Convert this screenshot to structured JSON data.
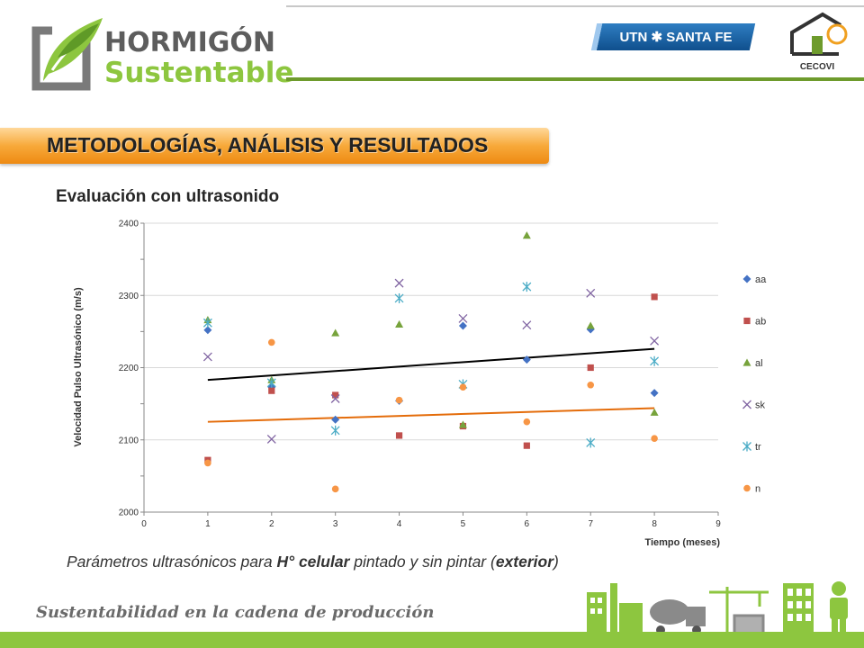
{
  "header": {
    "logo_line1": "HORMIGÓN",
    "logo_line2": "Sustentable",
    "utn_badge": "UTN ✱ SANTA FE",
    "cecovi": "CECOVI"
  },
  "section_title": "METODOLOGÍAS, ANÁLISIS Y RESULTADOS",
  "subtitle": "Evaluación con ultrasonido",
  "caption": {
    "part1": "Parámetros ultrasónicos para ",
    "part2": "H° celular",
    "part3": " pintado y sin pintar (",
    "part4": "exterior",
    "part5": ")"
  },
  "footer": {
    "slogan": "Sustentabilidad en la cadena de producción",
    "icons": [
      "factory-icon",
      "concrete-mixer-icon",
      "crane-icon",
      "building-icon",
      "person-icon"
    ]
  },
  "colors": {
    "accent_green": "#8dc63f",
    "dark_green": "#6e9b2c",
    "banner_orange": "#f7a93a"
  },
  "chart_data": {
    "type": "scatter",
    "xlabel": "Tiempo  (meses)",
    "ylabel": "Velocidad Pulso Ultrasónico  (m/s)",
    "xlim": [
      0,
      9
    ],
    "ylim": [
      2000,
      2400
    ],
    "xticks": [
      0,
      1,
      2,
      3,
      4,
      5,
      6,
      7,
      8,
      9
    ],
    "yticks": [
      2000,
      2100,
      2200,
      2300,
      2400
    ],
    "grid": "horizontal",
    "legend_position": "right",
    "series": [
      {
        "name": "aa",
        "marker": "diamond",
        "color": "#4472c4",
        "points": [
          [
            1,
            2252
          ],
          [
            2,
            2173
          ],
          [
            3,
            2128
          ],
          [
            4,
            2154
          ],
          [
            5,
            2258
          ],
          [
            6,
            2211
          ],
          [
            7,
            2253
          ],
          [
            8,
            2165
          ]
        ]
      },
      {
        "name": "ab",
        "marker": "square",
        "color": "#c0504d",
        "points": [
          [
            1,
            2072
          ],
          [
            2,
            2168
          ],
          [
            3,
            2162
          ],
          [
            4,
            2106
          ],
          [
            5,
            2119
          ],
          [
            6,
            2092
          ],
          [
            7,
            2200
          ],
          [
            8,
            2298
          ]
        ]
      },
      {
        "name": "al",
        "marker": "triangle",
        "color": "#77a33c",
        "points": [
          [
            1,
            2266
          ],
          [
            2,
            2183
          ],
          [
            3,
            2248
          ],
          [
            4,
            2260
          ],
          [
            5,
            2121
          ],
          [
            6,
            2383
          ],
          [
            7,
            2258
          ],
          [
            8,
            2138
          ]
        ]
      },
      {
        "name": "sk",
        "marker": "x",
        "color": "#8064a2",
        "points": [
          [
            1,
            2215
          ],
          [
            2,
            2101
          ],
          [
            3,
            2157
          ],
          [
            4,
            2317
          ],
          [
            5,
            2268
          ],
          [
            6,
            2259
          ],
          [
            7,
            2303
          ],
          [
            8,
            2237
          ]
        ]
      },
      {
        "name": "tr",
        "marker": "star",
        "color": "#4bacc6",
        "points": [
          [
            1,
            2262
          ],
          [
            2,
            2179
          ],
          [
            3,
            2113
          ],
          [
            4,
            2296
          ],
          [
            5,
            2177
          ],
          [
            6,
            2312
          ],
          [
            7,
            2096
          ],
          [
            8,
            2209
          ]
        ]
      },
      {
        "name": "n",
        "marker": "circle",
        "color": "#f79646",
        "points": [
          [
            1,
            2068
          ],
          [
            2,
            2235
          ],
          [
            3,
            2032
          ],
          [
            4,
            2155
          ],
          [
            5,
            2173
          ],
          [
            6,
            2125
          ],
          [
            7,
            2176
          ],
          [
            8,
            2102
          ]
        ]
      }
    ],
    "trendlines": [
      {
        "color": "#000000",
        "from": [
          1,
          2183
        ],
        "to": [
          8,
          2226
        ]
      },
      {
        "color": "#e46c0a",
        "from": [
          1,
          2125
        ],
        "to": [
          8,
          2144
        ]
      }
    ]
  }
}
